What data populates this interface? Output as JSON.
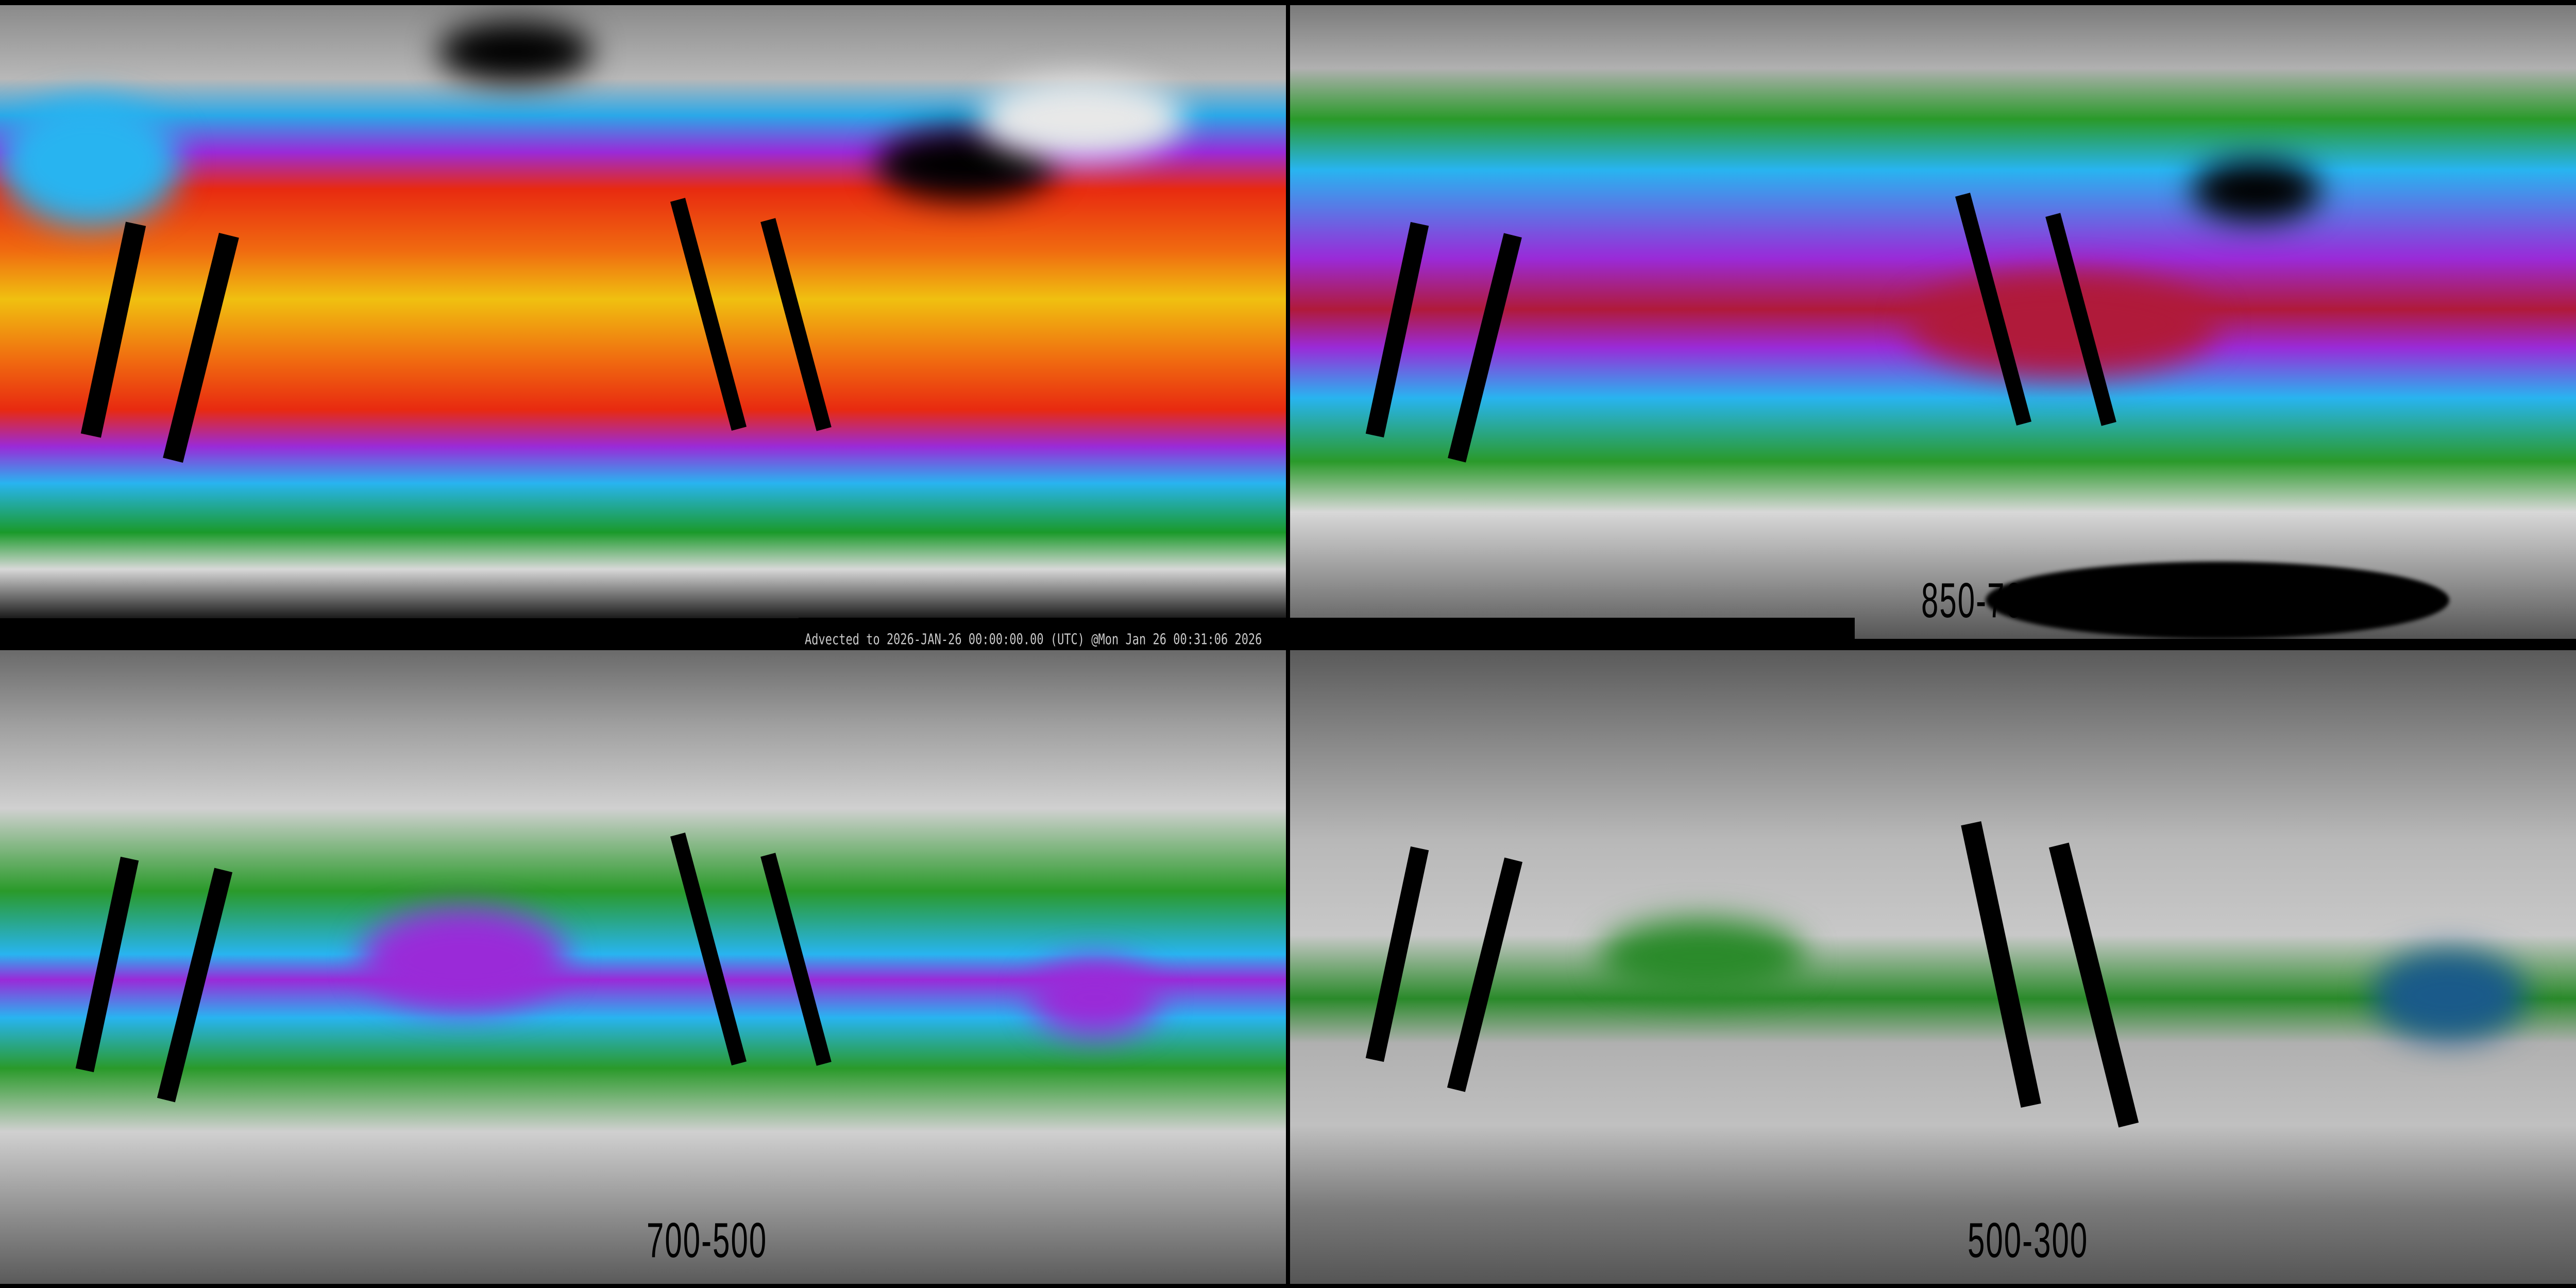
{
  "title_bar": {
    "timestamp": "Advected to 2026-JAN-26 00:00:00.00 (UTC) @Mon Jan 26 00:31:06 2026"
  },
  "panels": [
    {
      "id": "top-left",
      "label": ""
    },
    {
      "id": "top-right",
      "label": "850-700"
    },
    {
      "id": "bottom-left",
      "label": "700-500"
    },
    {
      "id": "bottom-right",
      "label": "500-300"
    }
  ],
  "colors": {
    "background": "#000000",
    "dry": "#8a8a8a",
    "moist_green": "#1a9a2a",
    "moist_blue": "#28b4f0",
    "moist_purple": "#9a2ad8",
    "moist_red": "#e82a10",
    "moist_orange": "#f06a10",
    "moist_yellow": "#f0c010",
    "missing_data": "#000000",
    "coastline": "#000000"
  }
}
